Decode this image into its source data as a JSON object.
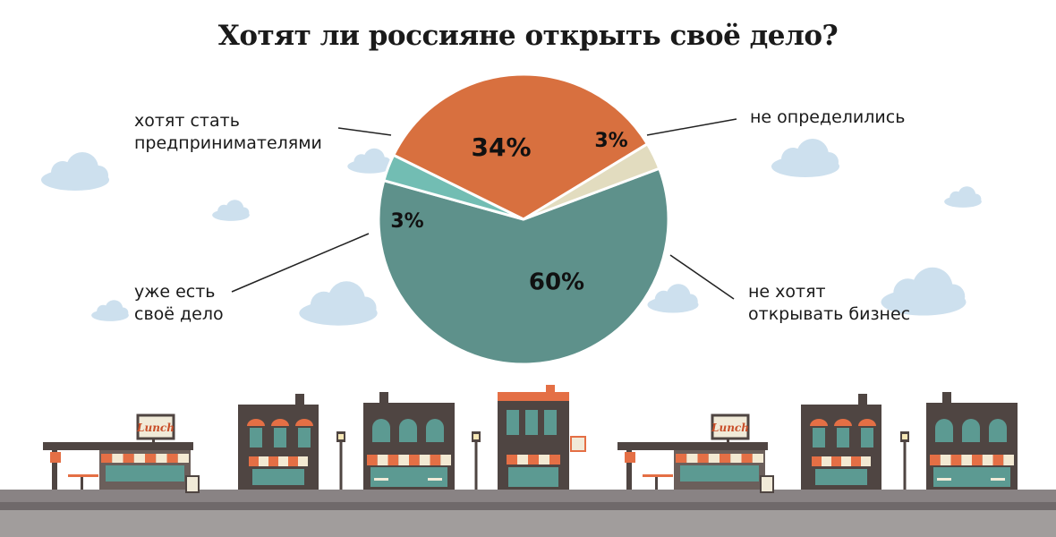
{
  "title": "Хотят ли россияне открыть своё дело?",
  "chart_data": {
    "type": "pie",
    "title": "Хотят ли россияне открыть своё дело?",
    "slices": [
      {
        "label_lines": [
          "не хотят",
          "открывать бизнес"
        ],
        "value": 60,
        "display": "60%",
        "color": "#5e918b"
      },
      {
        "label_lines": [
          "уже есть",
          "своё дело"
        ],
        "value": 3,
        "display": "3%",
        "color": "#72bdb3"
      },
      {
        "label_lines": [
          "хотят стать",
          "предпринимателями"
        ],
        "value": 34,
        "display": "34%",
        "color": "#d8703f"
      },
      {
        "label_lines": [
          "не определились"
        ],
        "value": 3,
        "display": "3%",
        "color": "#e2dcbf"
      }
    ],
    "legend": "callout lines"
  },
  "decor": {
    "sign_text": "Lunch",
    "colors": {
      "road": "#898384",
      "sidewalk": "#a19d9c",
      "cloud": "#cde0ee",
      "building": "#4f4542",
      "awning": "#e46f45",
      "window": "#5c9a92"
    }
  }
}
